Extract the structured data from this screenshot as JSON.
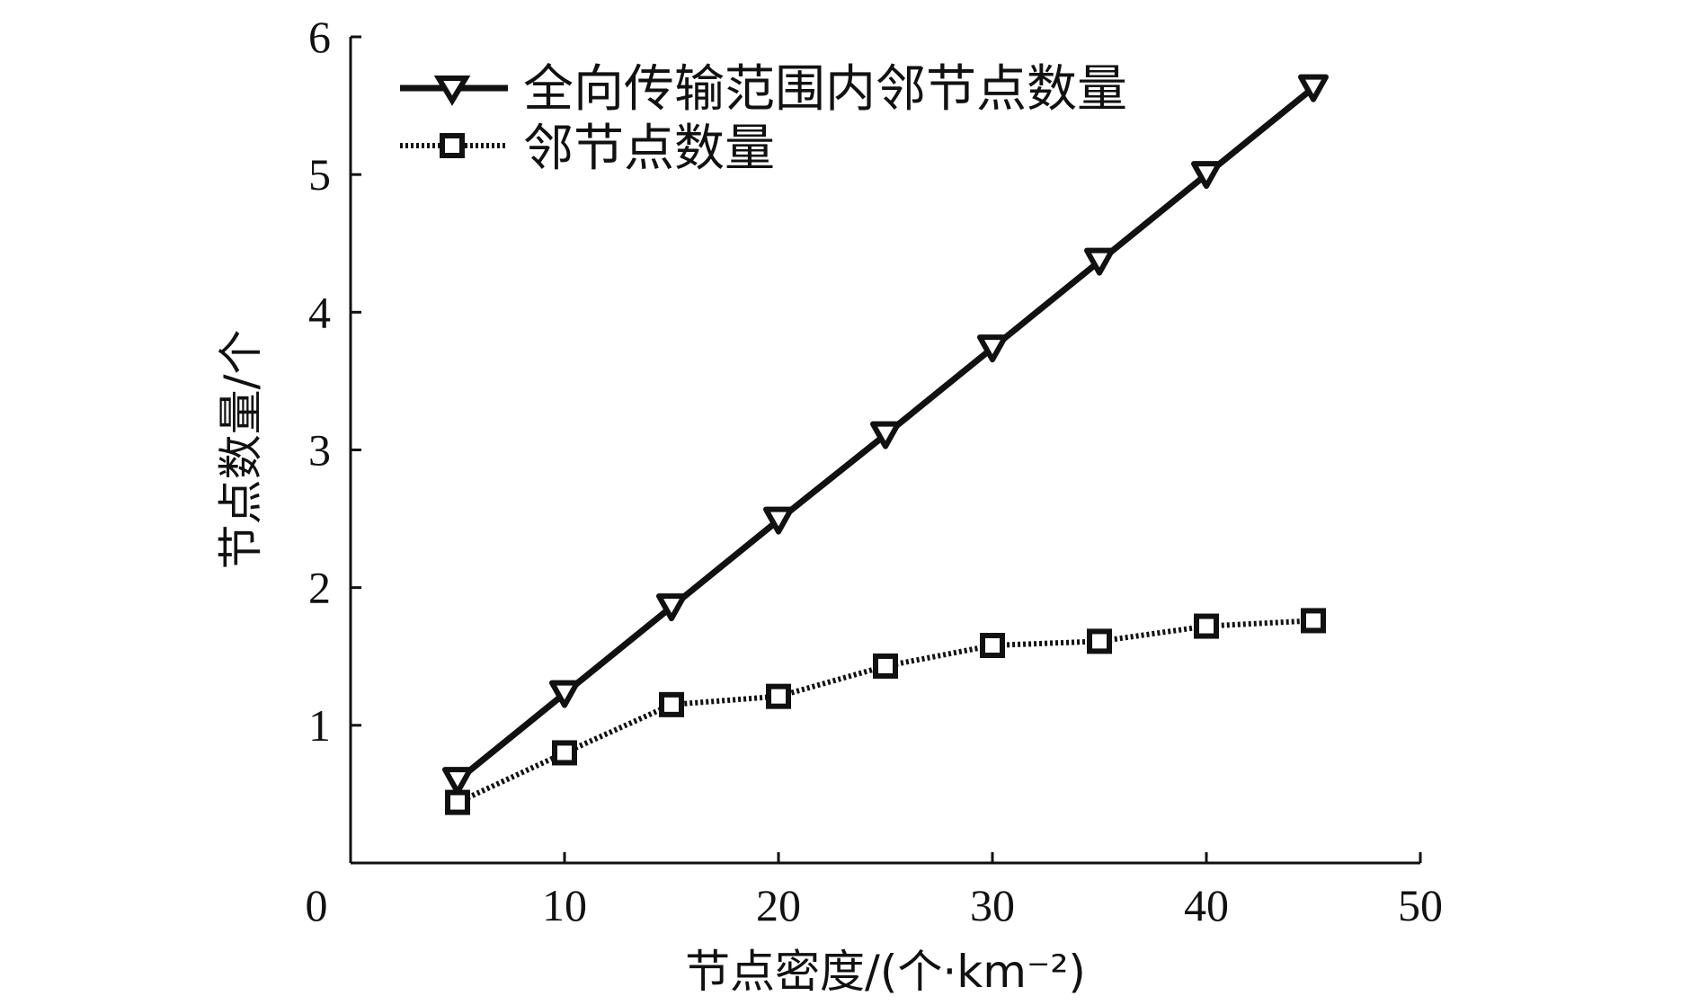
{
  "chart_data": {
    "type": "line",
    "title": "",
    "xlabel": "节点密度/(个·km⁻²)",
    "ylabel": "节点数量/个",
    "xlim": [
      0,
      50
    ],
    "ylim": [
      0,
      6
    ],
    "xticks": [
      "0",
      "10",
      "20",
      "30",
      "40",
      "50"
    ],
    "yticks": [
      "1",
      "2",
      "3",
      "4",
      "5",
      "6"
    ],
    "grid": false,
    "legend_position": "top-left",
    "x": [
      5,
      10,
      15,
      20,
      25,
      30,
      35,
      40,
      45
    ],
    "series": [
      {
        "name": "全向传输范围内邻节点数量",
        "marker": "triangle-down",
        "line": "solid",
        "values": [
          0.6,
          1.23,
          1.86,
          2.49,
          3.11,
          3.74,
          4.37,
          5.0,
          5.63
        ]
      },
      {
        "name": "邻节点数量",
        "marker": "square",
        "line": "dotted",
        "values": [
          0.44,
          0.8,
          1.15,
          1.21,
          1.43,
          1.58,
          1.61,
          1.72,
          1.76
        ]
      }
    ]
  }
}
